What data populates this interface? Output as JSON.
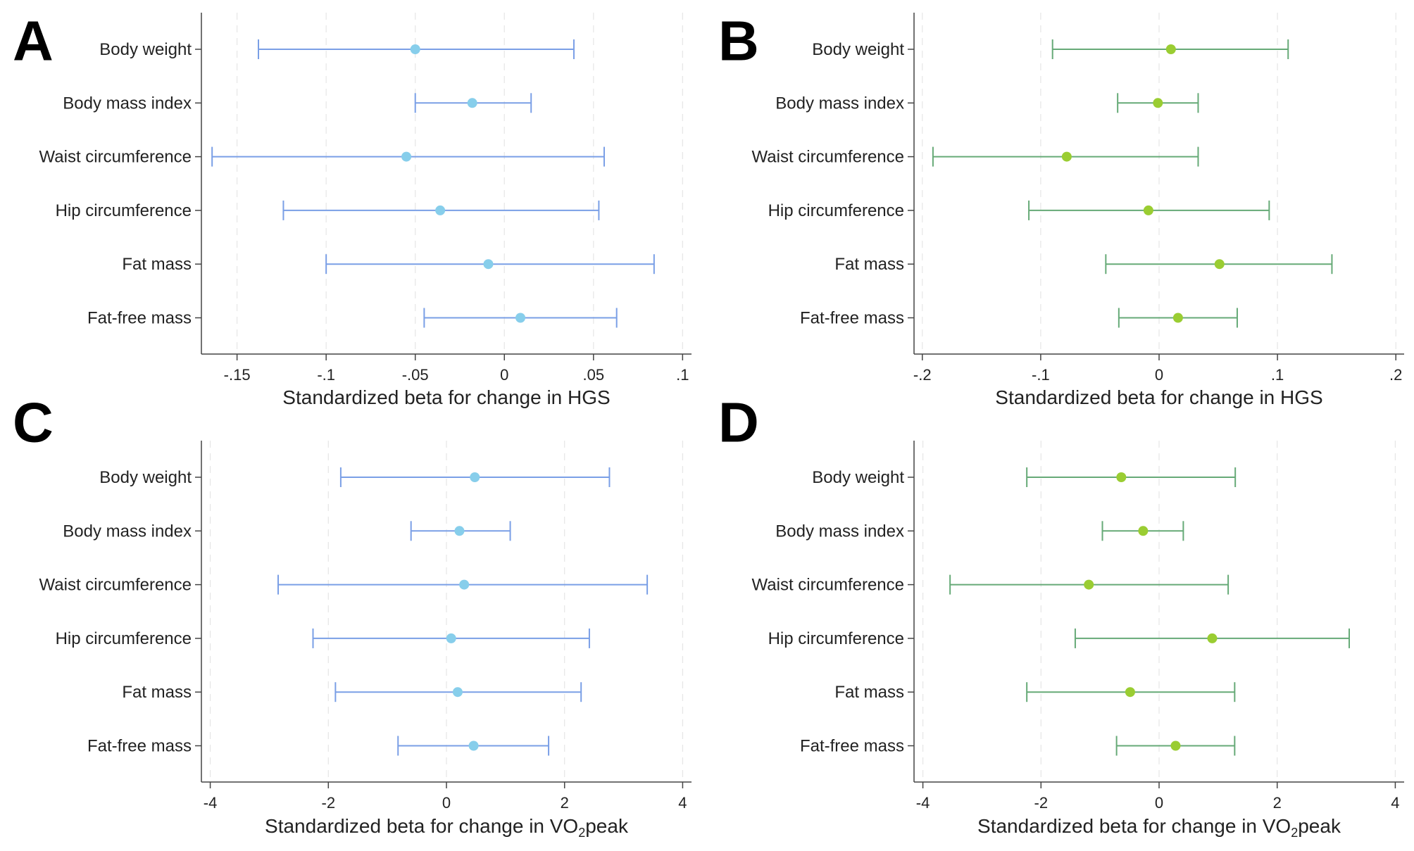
{
  "chart_data": [
    {
      "panel": "A",
      "type": "scatter",
      "categories": [
        "Body weight",
        "Body mass index",
        "Waist circumference",
        "Hip circumference",
        "Fat mass",
        "Fat-free mass"
      ],
      "estimates": [
        -0.05,
        -0.018,
        -0.055,
        -0.036,
        -0.009,
        0.009
      ],
      "ci_low": [
        -0.138,
        -0.05,
        -0.164,
        -0.124,
        -0.1,
        -0.045
      ],
      "ci_high": [
        0.039,
        0.015,
        0.056,
        0.053,
        0.084,
        0.063
      ],
      "xlim": [
        -0.17,
        0.105
      ],
      "xticks": [
        -0.15,
        -0.1,
        -0.05,
        0,
        0.05,
        0.1
      ],
      "xtick_labels": [
        "-.15",
        "-.1",
        "-.05",
        "0",
        ".05",
        ".1"
      ],
      "xlabel_parts": [
        "Standardized beta for change in HGS"
      ],
      "colors": {
        "point": "#87ceeb",
        "ci": "#7a9fe6"
      },
      "grid": true
    },
    {
      "panel": "B",
      "type": "scatter",
      "categories": [
        "Body weight",
        "Body mass index",
        "Waist circumference",
        "Hip circumference",
        "Fat mass",
        "Fat-free mass"
      ],
      "estimates": [
        0.01,
        -0.001,
        -0.078,
        -0.009,
        0.051,
        0.016
      ],
      "ci_low": [
        -0.09,
        -0.035,
        -0.191,
        -0.11,
        -0.045,
        -0.034
      ],
      "ci_high": [
        0.109,
        0.033,
        0.033,
        0.093,
        0.146,
        0.066
      ],
      "xlim": [
        -0.207,
        0.207
      ],
      "xticks": [
        -0.2,
        -0.1,
        0,
        0.1,
        0.2
      ],
      "xtick_labels": [
        "-.2",
        "-.1",
        "0",
        ".1",
        ".2"
      ],
      "xlabel_parts": [
        "Standardized beta for change in HGS"
      ],
      "colors": {
        "point": "#9acd32",
        "ci": "#66aa77"
      },
      "grid": true
    },
    {
      "panel": "C",
      "type": "scatter",
      "categories": [
        "Body weight",
        "Body mass index",
        "Waist circumference",
        "Hip circumference",
        "Fat mass",
        "Fat-free mass"
      ],
      "estimates": [
        0.48,
        0.22,
        0.3,
        0.08,
        0.19,
        0.46
      ],
      "ci_low": [
        -1.79,
        -0.6,
        -2.85,
        -2.26,
        -1.88,
        -0.82
      ],
      "ci_high": [
        2.76,
        1.08,
        3.4,
        2.42,
        2.28,
        1.73
      ],
      "xlim": [
        -4.15,
        4.15
      ],
      "xticks": [
        -4,
        -2,
        0,
        2,
        4
      ],
      "xtick_labels": [
        "-4",
        "-2",
        "0",
        "2",
        "4"
      ],
      "xlabel_parts": [
        "Standardized beta for change in VO",
        "2",
        "peak"
      ],
      "colors": {
        "point": "#87ceeb",
        "ci": "#7a9fe6"
      },
      "grid": true
    },
    {
      "panel": "D",
      "type": "scatter",
      "categories": [
        "Body weight",
        "Body mass index",
        "Waist circumference",
        "Hip circumference",
        "Fat mass",
        "Fat-free mass"
      ],
      "estimates": [
        -0.64,
        -0.27,
        -1.19,
        0.9,
        -0.49,
        0.28
      ],
      "ci_low": [
        -2.24,
        -0.96,
        -3.54,
        -1.42,
        -2.24,
        -0.72
      ],
      "ci_high": [
        1.29,
        0.41,
        1.17,
        3.22,
        1.28,
        1.28
      ],
      "xlim": [
        -4.15,
        4.15
      ],
      "xticks": [
        -4,
        -2,
        0,
        2,
        4
      ],
      "xtick_labels": [
        "-4",
        "-2",
        "0",
        "2",
        "4"
      ],
      "xlabel_parts": [
        "Standardized beta for change in VO",
        "2",
        "peak"
      ],
      "colors": {
        "point": "#9acd32",
        "ci": "#66aa77"
      },
      "grid": true
    }
  ]
}
